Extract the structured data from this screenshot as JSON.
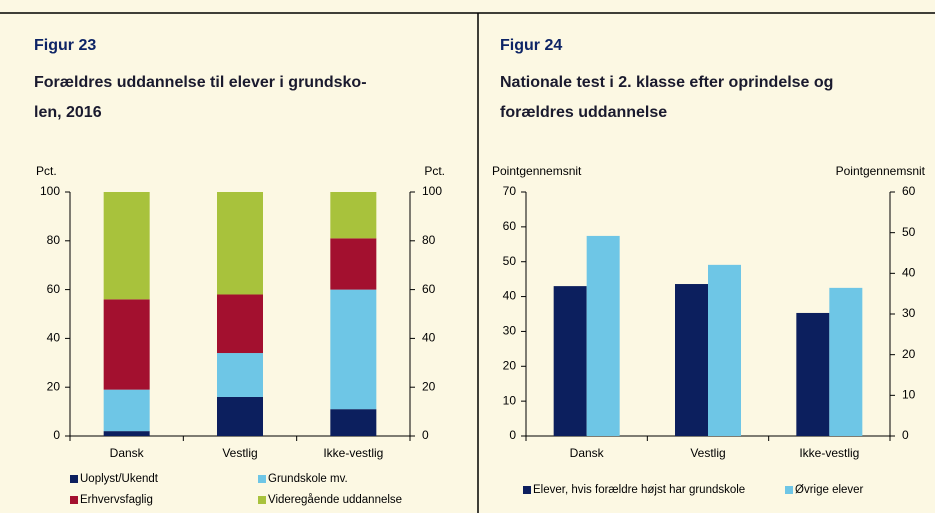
{
  "chart_data": [
    {
      "type": "bar",
      "stacked": true,
      "figure": "Figur 23",
      "title_lines": [
        "Forældres uddannelse til elever i grundsko-",
        "len, 2016"
      ],
      "ylabel": "Pct.",
      "y2label": "Pct.",
      "categories": [
        "Dansk",
        "Vestlig",
        "Ikke-vestlig"
      ],
      "series": [
        {
          "name": "Uoplyst/Ukendt",
          "color": "#0c1f5e",
          "values": [
            2,
            16,
            11
          ]
        },
        {
          "name": "Grundskole mv.",
          "color": "#6ec6e6",
          "values": [
            17,
            18,
            49
          ]
        },
        {
          "name": "Erhvervsfaglig",
          "color": "#a3102f",
          "values": [
            37,
            24,
            21
          ]
        },
        {
          "name": "Videregående uddannelse",
          "color": "#a8c23c",
          "values": [
            44,
            42,
            19
          ]
        }
      ],
      "ylim": [
        0,
        100
      ],
      "yticks": [
        0,
        20,
        40,
        60,
        80,
        100
      ],
      "y2lim": [
        0,
        100
      ],
      "y2ticks": [
        0,
        20,
        40,
        60,
        80,
        100
      ],
      "legend": "bottom"
    },
    {
      "type": "bar",
      "stacked": false,
      "figure": "Figur 24",
      "title_lines": [
        "Nationale test i 2. klasse efter oprindelse og",
        "forældres uddannelse"
      ],
      "ylabel": "Pointgennemsnit",
      "y2label": "Pointgennemsnit",
      "categories": [
        "Dansk",
        "Vestlig",
        "Ikke-vestlig"
      ],
      "series": [
        {
          "name": "Elever, hvis forældre højst har grundskole",
          "color": "#0c1f5e",
          "values": [
            43,
            43.6,
            35.3
          ]
        },
        {
          "name": "Øvrige elever",
          "color": "#6ec6e6",
          "values": [
            57.4,
            49.1,
            42.5
          ]
        }
      ],
      "ylim": [
        0,
        70
      ],
      "yticks": [
        0,
        10,
        20,
        30,
        40,
        50,
        60,
        70
      ],
      "y2lim": [
        0,
        60
      ],
      "y2ticks": [
        0,
        10,
        20,
        30,
        40,
        50,
        60
      ],
      "legend": "bottom"
    }
  ]
}
